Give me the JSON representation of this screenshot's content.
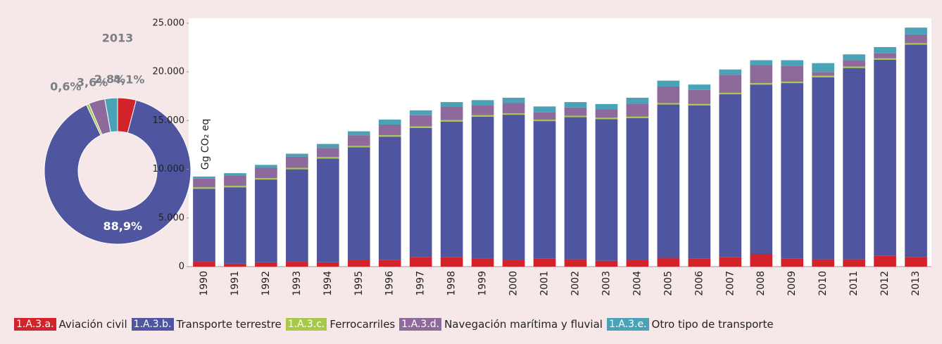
{
  "chart_data": [
    {
      "type": "pie",
      "title": "2013",
      "donut": true,
      "values": [
        4.1,
        88.9,
        0.6,
        3.6,
        2.8
      ],
      "value_labels": [
        "4,1%",
        "88,9%",
        "0,6%",
        "3,6%",
        "2,8%"
      ],
      "colors": [
        "#d2232a",
        "#4f559f",
        "#a9c84a",
        "#8d6a9b",
        "#4aa2b7"
      ]
    },
    {
      "type": "stacked_bar",
      "ylabel": "Gg CO₂ eq",
      "categories": [
        "1990",
        "1991",
        "1992",
        "1993",
        "1994",
        "1995",
        "1996",
        "1997",
        "1998",
        "1999",
        "2000",
        "2001",
        "2002",
        "2003",
        "2004",
        "2005",
        "2006",
        "2007",
        "2008",
        "2009",
        "2010",
        "2011",
        "2012",
        "2013"
      ],
      "ylim": [
        0,
        25000
      ],
      "yticks": [
        0,
        {
          "value": 5000,
          "label": "5.000"
        },
        {
          "value": 10000,
          "label": "10.000"
        },
        {
          "value": 15000,
          "label": "15.000"
        },
        {
          "value": 20000,
          "label": "20.000"
        },
        {
          "value": 25000,
          "label": "25.000"
        }
      ],
      "grid": false,
      "series": [
        {
          "code": "1.A.3.a.",
          "name": "Aviación civil",
          "color": "#d2232a",
          "values": [
            500,
            300,
            450,
            500,
            450,
            650,
            700,
            950,
            950,
            800,
            650,
            850,
            750,
            600,
            650,
            900,
            850,
            950,
            1300,
            850,
            750,
            750,
            1100,
            1000
          ]
        },
        {
          "code": "1.A.3.b.",
          "name": "Transporte terrestre",
          "color": "#4f559f",
          "values": [
            7500,
            7850,
            8500,
            9500,
            10650,
            11600,
            12650,
            13300,
            13950,
            14600,
            14950,
            14100,
            14600,
            14550,
            14600,
            15750,
            15700,
            16750,
            17400,
            18000,
            18700,
            19650,
            20150,
            21800
          ]
        },
        {
          "code": "1.A.3.c.",
          "name": "Ferrocarriles",
          "color": "#a9c84a",
          "values": [
            150,
            150,
            150,
            150,
            150,
            150,
            150,
            150,
            150,
            150,
            150,
            150,
            150,
            150,
            150,
            150,
            150,
            150,
            150,
            150,
            150,
            150,
            150,
            150
          ]
        },
        {
          "code": "1.A.3.d.",
          "name": "Navegación marítima y fluvial",
          "color": "#8d6a9b",
          "values": [
            900,
            1050,
            1050,
            1150,
            950,
            1100,
            1100,
            1150,
            1350,
            1050,
            1050,
            750,
            850,
            850,
            1350,
            1700,
            1450,
            1850,
            1850,
            1600,
            400,
            650,
            500,
            900
          ]
        },
        {
          "code": "1.A.3.e.",
          "name": "Otro tipo de transporte",
          "color": "#4aa2b7",
          "values": [
            200,
            250,
            300,
            300,
            400,
            400,
            500,
            500,
            500,
            500,
            550,
            600,
            550,
            550,
            600,
            600,
            550,
            550,
            500,
            600,
            900,
            600,
            650,
            700
          ]
        }
      ]
    }
  ]
}
